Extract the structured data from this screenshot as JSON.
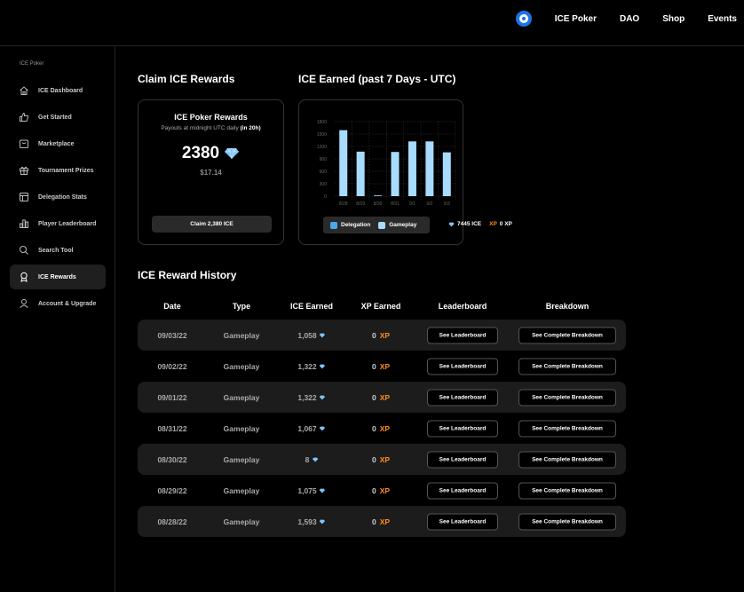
{
  "topnav": {
    "logo_icon": "decentral-games-logo-icon",
    "items": [
      "ICE Poker",
      "DAO",
      "Shop",
      "Events"
    ]
  },
  "sidebar": {
    "heading": "ICE Poker",
    "items": [
      {
        "label": "ICE Dashboard",
        "icon": "home-icon",
        "active": false
      },
      {
        "label": "Get Started",
        "icon": "thumbs-up-icon",
        "active": false
      },
      {
        "label": "Marketplace",
        "icon": "shopping-bag-icon",
        "active": false
      },
      {
        "label": "Tournament Prizes",
        "icon": "gift-icon",
        "active": false
      },
      {
        "label": "Delegation Stats",
        "icon": "table-icon",
        "active": false
      },
      {
        "label": "Player Leaderboard",
        "icon": "bar-chart-icon",
        "active": false
      },
      {
        "label": "Search Tool",
        "icon": "search-icon",
        "active": false
      },
      {
        "label": "ICE Rewards",
        "icon": "award-icon",
        "active": true
      },
      {
        "label": "Account & Upgrade",
        "icon": "user-icon",
        "active": false
      }
    ]
  },
  "claim": {
    "section_title": "Claim ICE Rewards",
    "card_title": "ICE Poker Rewards",
    "payout_text": "Payouts at midnight UTC daily",
    "payout_eta": "(in 20h)",
    "amount": "2380",
    "usd": "$17.14",
    "button_label": "Claim 2,380 ICE"
  },
  "earned": {
    "section_title": "ICE Earned (past 7 Days - UTC)",
    "legend": {
      "delegation": "Delegation",
      "gameplay": "Gameplay"
    },
    "total_ice": "7445 ICE",
    "xp_label": "XP",
    "xp_value": "0 XP"
  },
  "chart_data": {
    "type": "bar",
    "categories": [
      "8/28",
      "8/29",
      "8/30",
      "8/31",
      "9/1",
      "9/2",
      "9/3"
    ],
    "yticks": [
      0,
      300,
      600,
      900,
      1200,
      1500,
      1800
    ],
    "ylim": [
      0,
      1800
    ],
    "series": [
      {
        "name": "Delegation",
        "values": [
          0,
          0,
          0,
          0,
          0,
          0,
          0
        ]
      },
      {
        "name": "Gameplay",
        "values": [
          1593,
          1075,
          8,
          1067,
          1322,
          1322,
          1058
        ]
      }
    ],
    "colors": {
      "bar": "#a8dcff",
      "delegation": "#4aa8ea",
      "gameplay": "#a8dcff",
      "gridline": "#3a3a3a",
      "axis_text": "#666666"
    }
  },
  "history": {
    "section_title": "ICE Reward History",
    "columns": [
      "Date",
      "Type",
      "ICE Earned",
      "XP Earned",
      "Leaderboard",
      "Breakdown"
    ],
    "leaderboard_label": "See Leaderboard",
    "breakdown_label": "See Complete Breakdown",
    "xp_suffix": "XP",
    "rows": [
      {
        "date": "09/03/22",
        "type": "Gameplay",
        "ice": "1,058",
        "xp": "0"
      },
      {
        "date": "09/02/22",
        "type": "Gameplay",
        "ice": "1,322",
        "xp": "0"
      },
      {
        "date": "09/01/22",
        "type": "Gameplay",
        "ice": "1,322",
        "xp": "0"
      },
      {
        "date": "08/31/22",
        "type": "Gameplay",
        "ice": "1,067",
        "xp": "0"
      },
      {
        "date": "08/30/22",
        "type": "Gameplay",
        "ice": "8",
        "xp": "0"
      },
      {
        "date": "08/29/22",
        "type": "Gameplay",
        "ice": "1,075",
        "xp": "0"
      },
      {
        "date": "08/28/22",
        "type": "Gameplay",
        "ice": "1,593",
        "xp": "0"
      }
    ]
  },
  "colors": {
    "accent_xp": "#ff8a1f",
    "diamond": "#7cc6ff",
    "row_shade": "#1c1c1c",
    "logo": "#1e73e6"
  }
}
